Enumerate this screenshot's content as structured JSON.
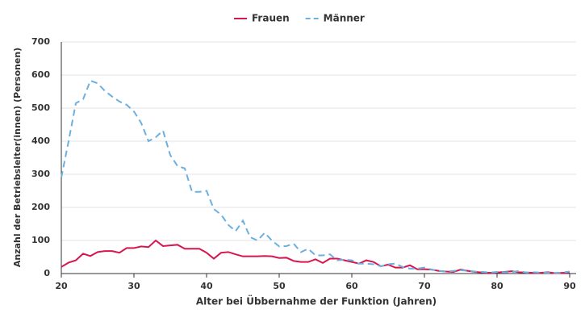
{
  "chart_data": {
    "type": "line",
    "xlabel": "Alter bei Übbernahme der Funktion (Jahren)",
    "ylabel": "Anzahl der Betriebsleiter(innen) (Personen)",
    "x": [
      20,
      21,
      22,
      23,
      24,
      25,
      26,
      27,
      28,
      29,
      30,
      31,
      32,
      33,
      34,
      35,
      36,
      37,
      38,
      39,
      40,
      41,
      42,
      43,
      44,
      45,
      46,
      47,
      48,
      49,
      50,
      51,
      52,
      53,
      54,
      55,
      56,
      57,
      58,
      59,
      60,
      61,
      62,
      63,
      64,
      65,
      66,
      67,
      68,
      69,
      70,
      71,
      72,
      73,
      74,
      75,
      76,
      77,
      78,
      79,
      80,
      81,
      82,
      83,
      84,
      85,
      86,
      87,
      88,
      89,
      90
    ],
    "series": [
      {
        "name": "Frauen",
        "color": "#d7154f",
        "dash": false,
        "values": [
          20,
          33,
          40,
          60,
          53,
          65,
          68,
          68,
          63,
          77,
          77,
          82,
          80,
          100,
          83,
          85,
          87,
          75,
          75,
          75,
          63,
          45,
          63,
          65,
          58,
          52,
          52,
          52,
          53,
          52,
          47,
          48,
          38,
          35,
          35,
          43,
          32,
          45,
          45,
          40,
          35,
          30,
          40,
          35,
          22,
          27,
          18,
          18,
          25,
          13,
          13,
          12,
          8,
          6,
          5,
          12,
          8,
          5,
          3,
          2,
          3,
          5,
          7,
          4,
          3,
          2,
          2,
          4,
          1,
          2,
          3
        ]
      },
      {
        "name": "Männer",
        "color": "#6cb0e0",
        "dash": true,
        "values": [
          290,
          400,
          515,
          527,
          583,
          575,
          552,
          535,
          520,
          510,
          490,
          455,
          400,
          412,
          432,
          358,
          325,
          318,
          247,
          247,
          250,
          195,
          178,
          147,
          128,
          160,
          110,
          100,
          123,
          100,
          82,
          83,
          90,
          65,
          75,
          55,
          55,
          58,
          40,
          42,
          40,
          30,
          30,
          28,
          22,
          28,
          30,
          20,
          15,
          15,
          18,
          12,
          8,
          6,
          8,
          10,
          8,
          6,
          5,
          3,
          5,
          4,
          4,
          8,
          3,
          4,
          3,
          2,
          2,
          3,
          6
        ]
      }
    ],
    "xlim": [
      20,
      90
    ],
    "xticks": [
      20,
      30,
      40,
      50,
      60,
      70,
      80,
      90
    ],
    "ylim": [
      0,
      700
    ],
    "yticks": [
      0,
      100,
      200,
      300,
      400,
      500,
      600,
      700
    ],
    "grid": true,
    "legend": "top"
  }
}
